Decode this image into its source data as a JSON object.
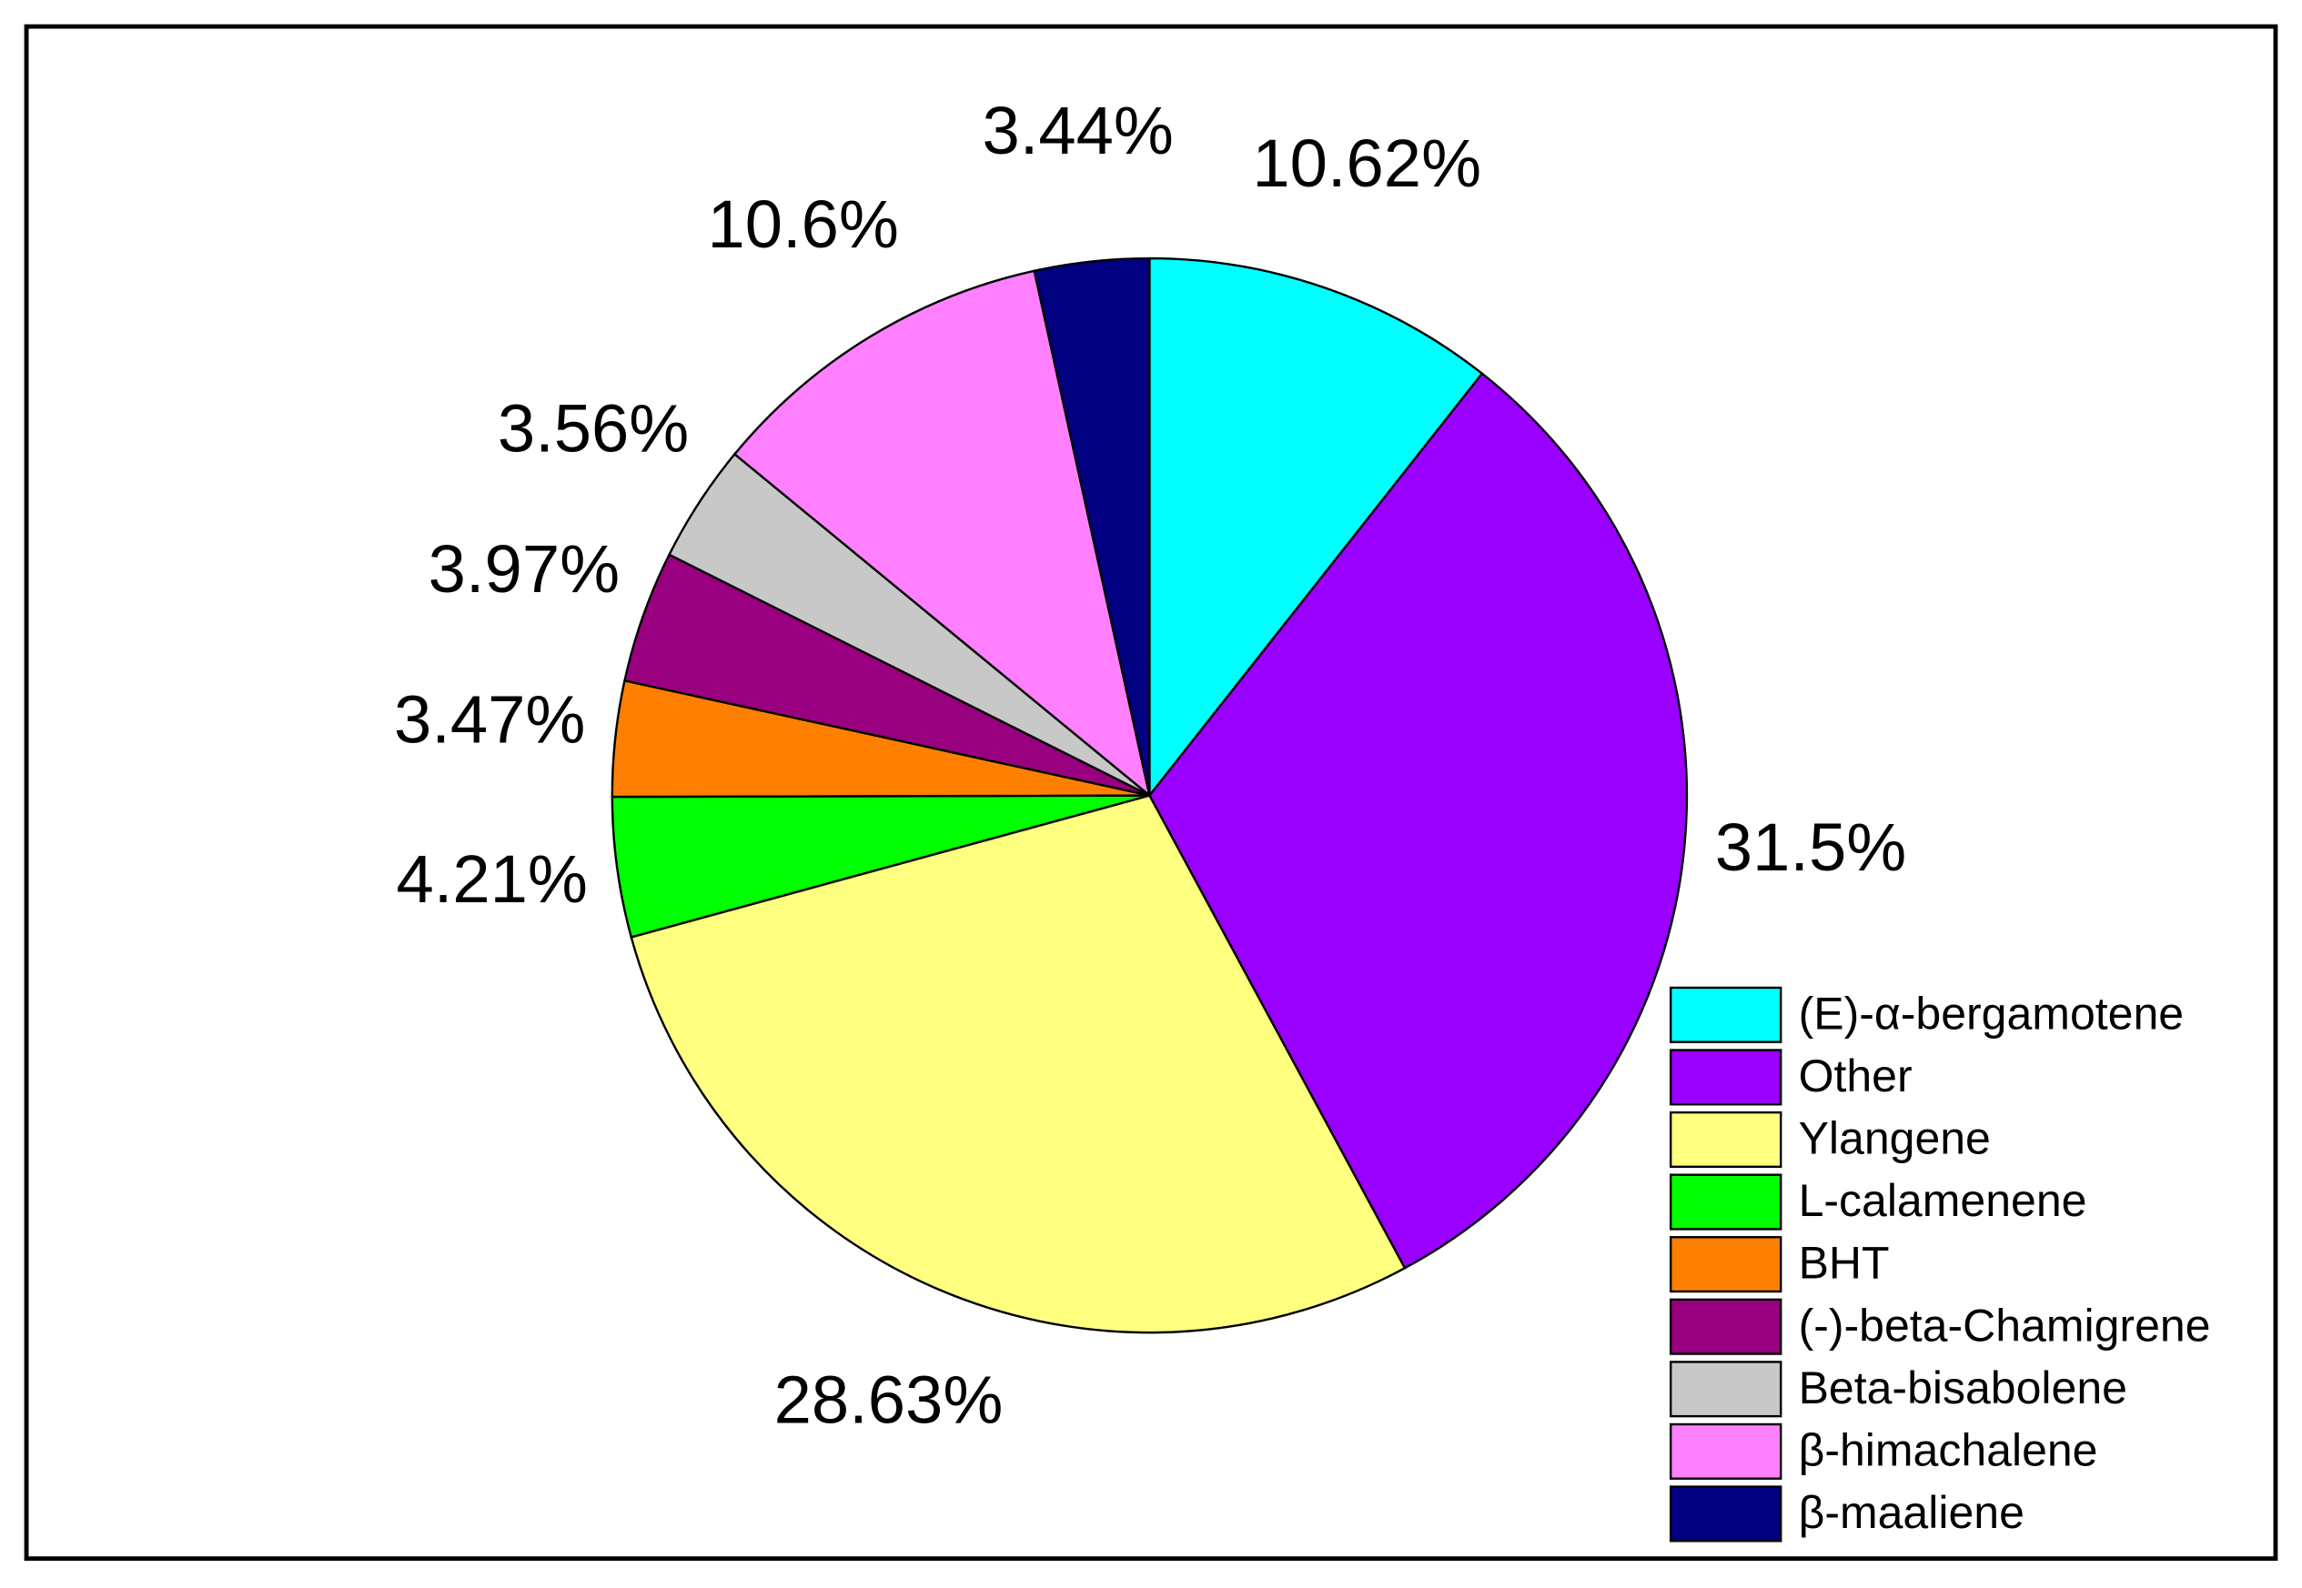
{
  "chart_data": {
    "type": "pie",
    "categories": [
      "(E)-α-bergamotene",
      "Other",
      "Ylangene",
      "L-calamenene",
      "BHT",
      "(-)-beta-Chamigrene",
      "Beta-bisabolene",
      "β-himachalene",
      "β-maaliene"
    ],
    "values": [
      10.62,
      31.5,
      28.63,
      4.21,
      3.47,
      3.97,
      3.56,
      10.6,
      3.44
    ],
    "value_labels": [
      "10.62%",
      "31.5%",
      "28.63%",
      "4.21%",
      "3.47%",
      "3.97%",
      "3.56%",
      "10.6%",
      "3.44%"
    ],
    "colors": [
      "#00ffff",
      "#9900ff",
      "#ffff80",
      "#00ff00",
      "#ff8000",
      "#990080",
      "#c8c8c8",
      "#ff80ff",
      "#000080"
    ],
    "legend": "lower right"
  }
}
